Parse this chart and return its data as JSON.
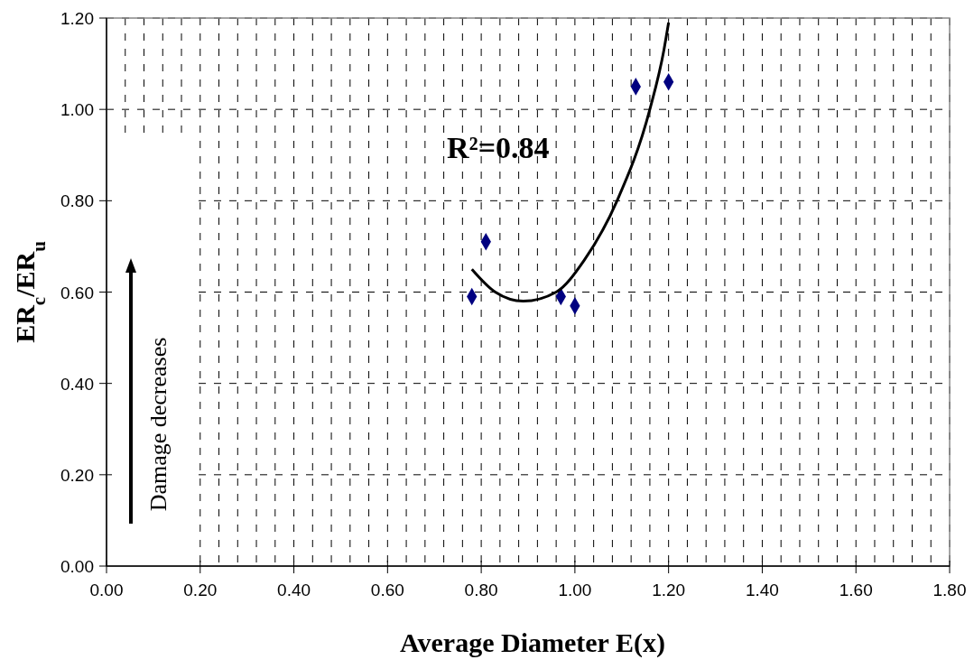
{
  "chart_data": {
    "type": "scatter",
    "xlabel": "Average Diameter E(x)",
    "ylabel": "ER$_{c}$/ER$_{u}$",
    "xlim": [
      0,
      1.8
    ],
    "ylim": [
      0,
      1.2
    ],
    "xticks": [
      {
        "value": 0,
        "label": "0.00"
      },
      {
        "value": 0.04,
        "label": null
      },
      {
        "value": 0.08,
        "label": null
      },
      {
        "value": 0.12,
        "label": null
      },
      {
        "value": 0.16,
        "label": null
      },
      {
        "value": 0.2,
        "label": "0.20"
      },
      {
        "value": 0.24,
        "label": null
      },
      {
        "value": 0.28,
        "label": null
      },
      {
        "value": 0.32,
        "label": null
      },
      {
        "value": 0.36,
        "label": null
      },
      {
        "value": 0.4,
        "label": "0.40"
      },
      {
        "value": 0.44,
        "label": null
      },
      {
        "value": 0.48,
        "label": null
      },
      {
        "value": 0.52,
        "label": null
      },
      {
        "value": 0.56,
        "label": null
      },
      {
        "value": 0.6,
        "label": "0.60"
      },
      {
        "value": 0.64,
        "label": null
      },
      {
        "value": 0.68,
        "label": null
      },
      {
        "value": 0.72,
        "label": null
      },
      {
        "value": 0.76,
        "label": null
      },
      {
        "value": 0.8,
        "label": "0.80"
      },
      {
        "value": 0.84,
        "label": null
      },
      {
        "value": 0.88,
        "label": null
      },
      {
        "value": 0.92,
        "label": null
      },
      {
        "value": 0.96,
        "label": null
      },
      {
        "value": 1.0,
        "label": "1.00"
      },
      {
        "value": 1.04,
        "label": null
      },
      {
        "value": 1.08,
        "label": null
      },
      {
        "value": 1.12,
        "label": null
      },
      {
        "value": 1.16,
        "label": null
      },
      {
        "value": 1.2,
        "label": "1.20"
      },
      {
        "value": 1.24,
        "label": null
      },
      {
        "value": 1.28,
        "label": null
      },
      {
        "value": 1.32,
        "label": null
      },
      {
        "value": 1.36,
        "label": null
      },
      {
        "value": 1.4,
        "label": "1.40"
      },
      {
        "value": 1.44,
        "label": null
      },
      {
        "value": 1.48,
        "label": null
      },
      {
        "value": 1.52,
        "label": null
      },
      {
        "value": 1.56,
        "label": null
      },
      {
        "value": 1.6,
        "label": "1.60"
      },
      {
        "value": 1.64,
        "label": null
      },
      {
        "value": 1.68,
        "label": null
      },
      {
        "value": 1.72,
        "label": null
      },
      {
        "value": 1.76,
        "label": null
      },
      {
        "value": 1.8,
        "label": "1.80"
      }
    ],
    "yticks": [
      {
        "value": 0,
        "label": "0.00"
      },
      {
        "value": 0.2,
        "label": "0.20"
      },
      {
        "value": 0.4,
        "label": "0.40"
      },
      {
        "value": 0.6,
        "label": "0.60"
      },
      {
        "value": 0.8,
        "label": "0.80"
      },
      {
        "value": 1.0,
        "label": "1.00"
      },
      {
        "value": 1.2,
        "label": "1.20"
      }
    ],
    "grid": true,
    "series": [
      {
        "color": "#000080",
        "marker": "diamond",
        "x": [
          0.78,
          0.81,
          0.97,
          1.0,
          1.13,
          1.2
        ],
        "values": [
          0.59,
          0.71,
          0.59,
          0.57,
          1.05,
          1.06
        ]
      },
      {
        "type": "line",
        "color": "#000000",
        "marker": "none",
        "line_style": "solid",
        "x": [
          0.78,
          0.83,
          0.89,
          0.96,
          1.02,
          1.09,
          1.16,
          1.19,
          1.2
        ],
        "values": [
          0.65,
          0.6,
          0.58,
          0.6,
          0.67,
          0.8,
          1.0,
          1.13,
          1.19
        ]
      }
    ],
    "annotations": [
      "R²=0.84",
      "Damage decreases"
    ]
  }
}
